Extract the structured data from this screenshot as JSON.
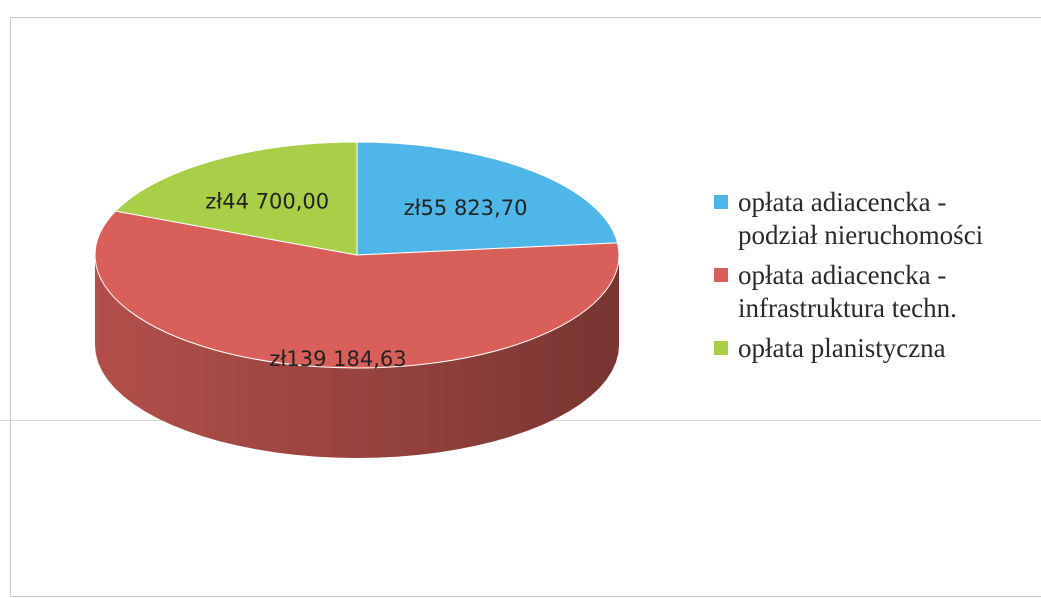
{
  "chart_data": {
    "type": "pie",
    "is_3d": true,
    "legend_position": "right",
    "slices": [
      {
        "label": "opłata adiacencka - podział nieruchomości",
        "value": 55823.7,
        "value_label": "zł55 823,70",
        "color": "#4fb6e8"
      },
      {
        "label": "opłata adiacencka - infrastruktura techn.",
        "value": 139184.63,
        "value_label": "zł139 184,63",
        "color": "#d9605a"
      },
      {
        "label": "opłata planistyczna",
        "value": 44700.0,
        "value_label": "zł44 700,00",
        "color": "#a9cf48"
      }
    ]
  },
  "legend": {
    "items": [
      {
        "line1": "opłata adiacencka -",
        "line2": "podział nieruchomości",
        "color": "#4fb6e8",
        "swatch_icon": "square-icon"
      },
      {
        "line1": "opłata adiacencka -",
        "line2": "infrastruktura techn.",
        "color": "#d9605a",
        "swatch_icon": "square-icon"
      },
      {
        "line1": "opłata planistyczna",
        "line2": "",
        "color": "#a9cf48",
        "swatch_icon": "square-icon"
      }
    ]
  }
}
